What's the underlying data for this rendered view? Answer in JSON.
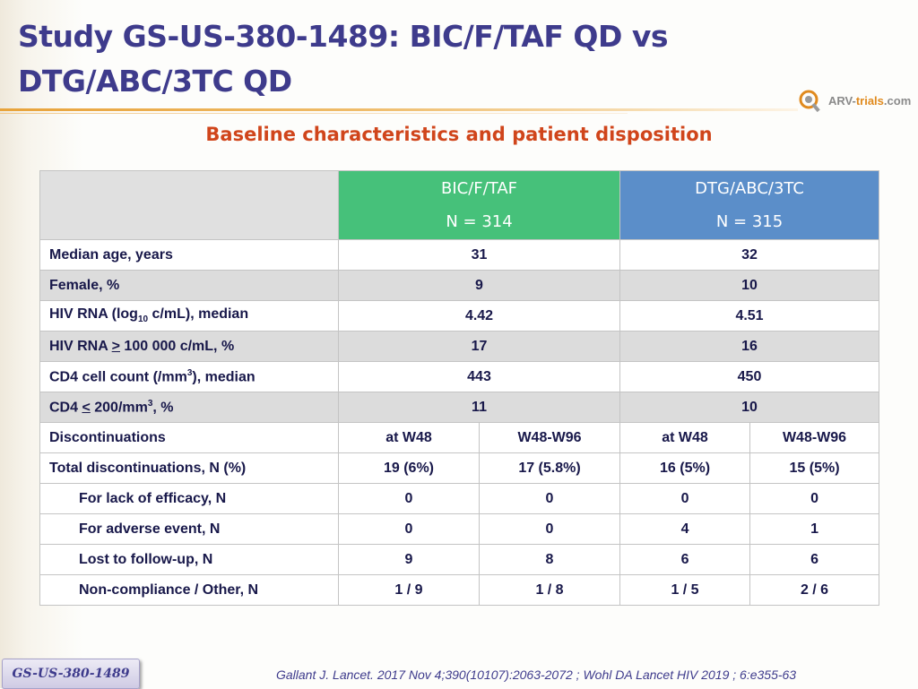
{
  "title": {
    "line1": "Study GS-US-380-1489: BIC/F/TAF QD vs",
    "line2": "DTG/ABC/3TC QD"
  },
  "logo": {
    "text_main": "ARV-",
    "text_accent": "trials",
    "text_suffix": ".com"
  },
  "subtitle": "Baseline characteristics and patient disposition",
  "colors": {
    "title": "#3e3b8c",
    "subtitle": "#d0451b",
    "header_green": "#46c17a",
    "header_blue": "#5b8ec9",
    "rule_orange": "#e8a33a",
    "row_grey": "#dcdcdc"
  },
  "table": {
    "groups": [
      {
        "name": "BIC/F/TAF",
        "n": "N = 314"
      },
      {
        "name": "DTG/ABC/3TC",
        "n": "N = 315"
      }
    ],
    "baseline_rows": [
      {
        "label": "Median age, years",
        "bic": "31",
        "dtg": "32"
      },
      {
        "label": "Female, %",
        "bic": "9",
        "dtg": "10"
      },
      {
        "label_pre": "HIV RNA (log",
        "label_sub": "10",
        "label_post": " c/mL), median",
        "bic": "4.42",
        "dtg": "4.51"
      },
      {
        "label_pre": "HIV RNA ",
        "label_u": ">",
        "label_post": " 100 000 c/mL, %",
        "bic": "17",
        "dtg": "16"
      },
      {
        "label_pre": "CD4 cell count (/mm",
        "label_sup": "3",
        "label_post": "), median",
        "bic": "443",
        "dtg": "450"
      },
      {
        "label_pre": "CD4 ",
        "label_u": "<",
        "label_mid": " 200/mm",
        "label_sup": "3",
        "label_post": ", %",
        "bic": "11",
        "dtg": "10"
      }
    ],
    "disc_header": {
      "label": "Discontinuations",
      "c1": "at W48",
      "c2": "W48-W96",
      "c3": "at W48",
      "c4": "W48-W96"
    },
    "disc_rows": [
      {
        "label": "Total discontinuations, N (%)",
        "values": [
          "19 (6%)",
          "17 (5.8%)",
          "16 (5%)",
          "15 (5%)"
        ]
      },
      {
        "label": "For lack of efficacy, N",
        "values": [
          "0",
          "0",
          "0",
          "0"
        ]
      },
      {
        "label": "For adverse event, N",
        "values": [
          "0",
          "0",
          "4",
          "1"
        ]
      },
      {
        "label": "Lost to follow-up, N",
        "values": [
          "9",
          "8",
          "6",
          "6"
        ]
      },
      {
        "label": "Non-compliance / Other, N",
        "values": [
          "1 / 9",
          "1 / 8",
          "1 / 5",
          "2 / 6"
        ]
      }
    ]
  },
  "footer": {
    "badge": "GS-US-380-1489",
    "citation": "Gallant J. Lancet. 2017 Nov 4;390(10107):2063-2072 ; Wohl DA Lancet HIV 2019 ; 6:e355-63"
  }
}
